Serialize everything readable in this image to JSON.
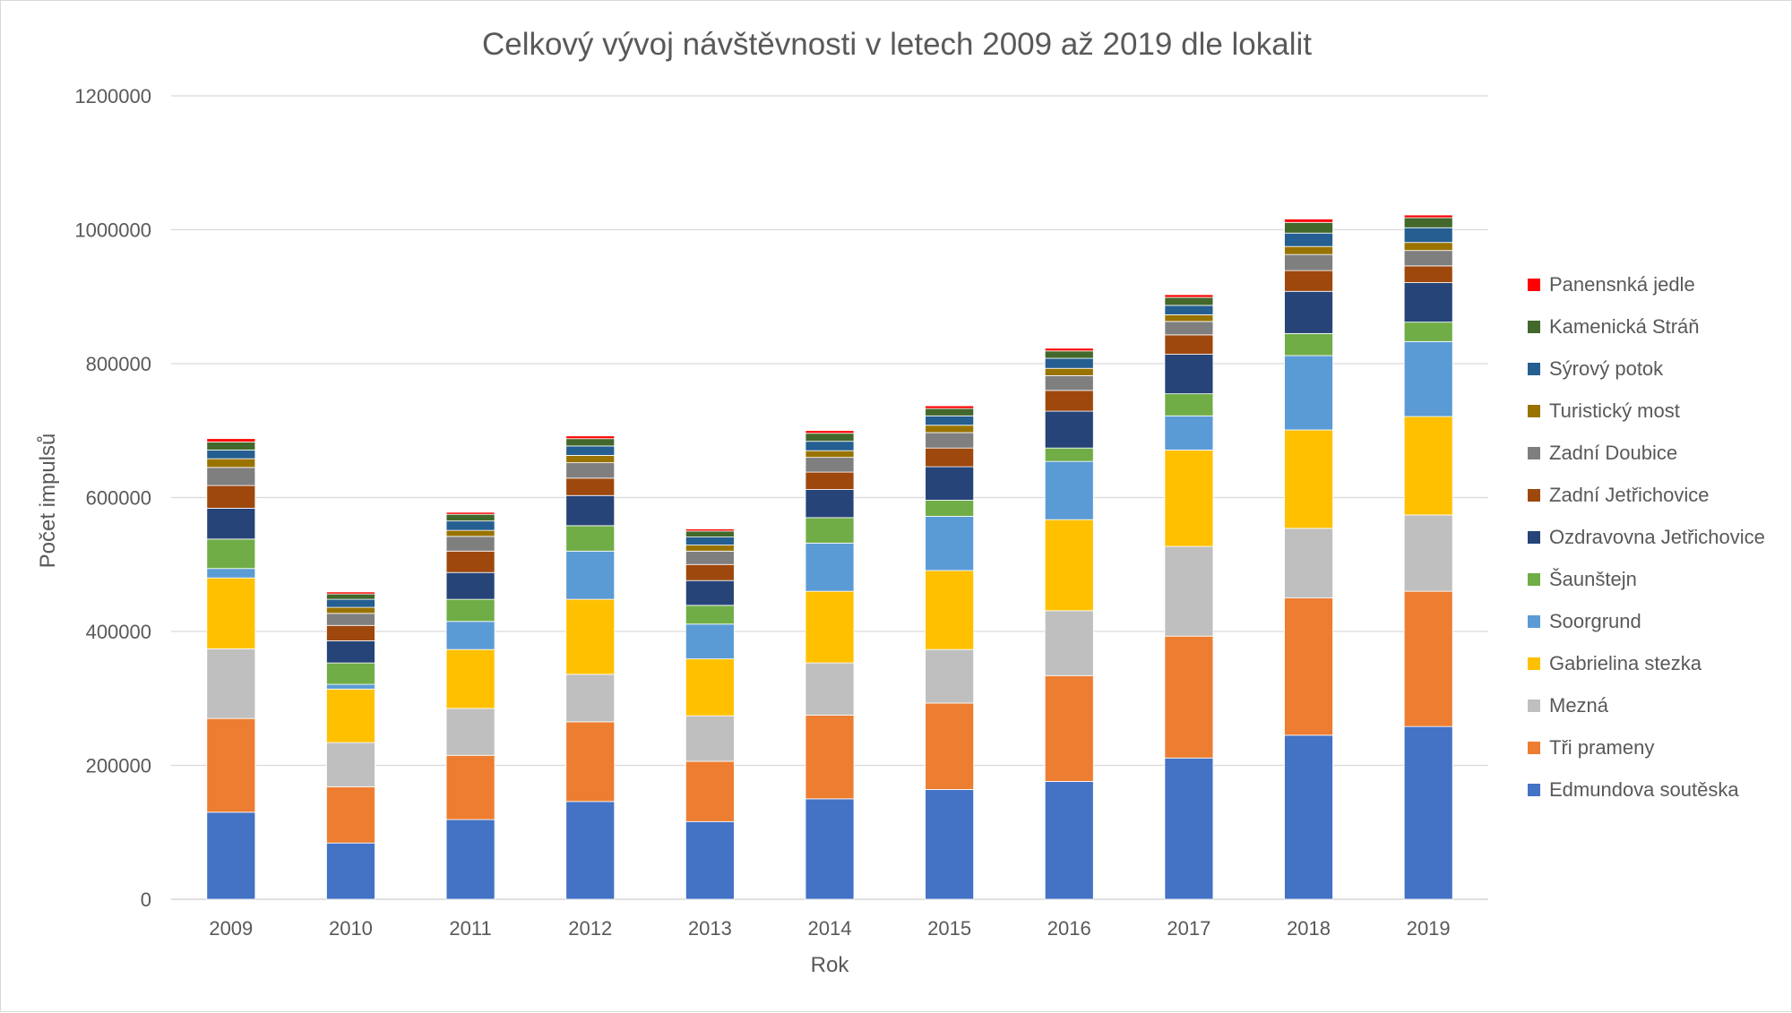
{
  "chart_data": {
    "type": "bar",
    "stacked": true,
    "title": "Celkový vývoj návštěvnosti v letech 2009 až 2019 dle lokalit",
    "xlabel": "Rok",
    "ylabel": "Počet impulsů",
    "ylim": [
      0,
      1200000
    ],
    "yticks": [
      "0",
      "200000",
      "400000",
      "600000",
      "800000",
      "1000000",
      "1200000"
    ],
    "grid": true,
    "legend_position": "right",
    "categories": [
      "2009",
      "2010",
      "2011",
      "2012",
      "2013",
      "2014",
      "2015",
      "2016",
      "2017",
      "2018",
      "2019"
    ],
    "series": [
      {
        "name": "Edmundova soutěska",
        "color": "#4472C4",
        "values": [
          130000,
          84000,
          119000,
          146000,
          116000,
          150000,
          164000,
          176000,
          211000,
          245000,
          258000
        ]
      },
      {
        "name": "Tři prameny",
        "color": "#ED7D31",
        "values": [
          140000,
          84000,
          96000,
          119000,
          90000,
          125000,
          129000,
          158000,
          182000,
          205000,
          202000
        ]
      },
      {
        "name": "Mezná",
        "color": "#BFBFBF",
        "values": [
          104000,
          66000,
          70000,
          71000,
          68000,
          78000,
          80000,
          97000,
          134000,
          104000,
          114000
        ]
      },
      {
        "name": "Gabrielina stezka",
        "color": "#FFC000",
        "values": [
          106000,
          80000,
          88000,
          112000,
          85000,
          107000,
          118000,
          136000,
          144000,
          147000,
          147000
        ]
      },
      {
        "name": "Soorgrund",
        "color": "#5B9BD5",
        "values": [
          14000,
          7000,
          42000,
          72000,
          52000,
          72000,
          81000,
          87000,
          51000,
          111000,
          112000
        ]
      },
      {
        "name": "Šaunštejn",
        "color": "#70AD47",
        "values": [
          44000,
          32000,
          33000,
          38000,
          28000,
          38000,
          24000,
          20000,
          33000,
          33000,
          29000
        ]
      },
      {
        "name": "Ozdravovna Jetřichovice",
        "color": "#264478",
        "values": [
          46000,
          33000,
          40000,
          45000,
          37000,
          42000,
          50000,
          55000,
          59000,
          63000,
          59000
        ]
      },
      {
        "name": "Zadní Jetřichovice",
        "color": "#9E480E",
        "values": [
          34000,
          23000,
          32000,
          26000,
          24000,
          26000,
          28000,
          31000,
          29000,
          31000,
          25000
        ]
      },
      {
        "name": "Zadní Doubice",
        "color": "#7F7F7F",
        "values": [
          27000,
          18000,
          22000,
          23000,
          20000,
          22000,
          23000,
          22000,
          20000,
          24000,
          23000
        ]
      },
      {
        "name": "Turistický most",
        "color": "#997300",
        "values": [
          13000,
          9000,
          9000,
          11000,
          9000,
          10000,
          11000,
          11000,
          10000,
          12000,
          12000
        ]
      },
      {
        "name": "Sýrový potok",
        "color": "#255E91",
        "values": [
          13000,
          12000,
          14000,
          14000,
          12000,
          14000,
          14000,
          15000,
          14000,
          20000,
          22000
        ]
      },
      {
        "name": "Kamenická Stráň",
        "color": "#43682B",
        "values": [
          12000,
          8000,
          10000,
          11000,
          9000,
          12000,
          11000,
          11000,
          12000,
          16000,
          15000
        ]
      },
      {
        "name": "Panensnká jedle",
        "color": "#FF0000",
        "values": [
          5000,
          3000,
          3000,
          4000,
          3000,
          4000,
          4000,
          4000,
          4000,
          5000,
          4000
        ]
      }
    ]
  }
}
